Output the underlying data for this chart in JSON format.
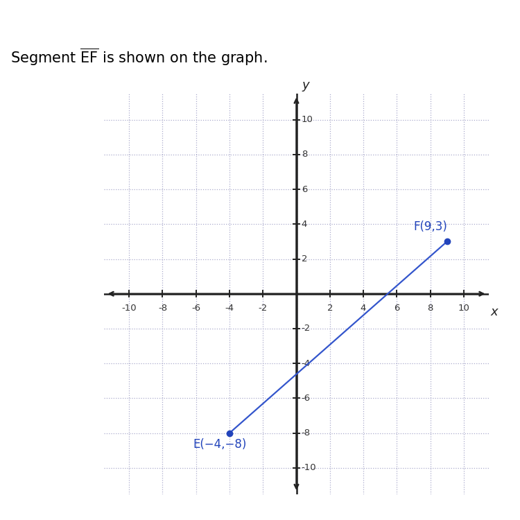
{
  "header_bg_color": "#555555",
  "header_text_color": "#000000",
  "title_text": "Segment $\\overline{\\mathrm{EF}}$ is shown on the graph.",
  "title_fontsize": 15,
  "point_E": [
    -4,
    -8
  ],
  "point_F": [
    9,
    3
  ],
  "point_color": "#2244bb",
  "line_color": "#3355cc",
  "label_E": "E(−4,−8)",
  "label_F": "F(9,3)",
  "label_color": "#2244bb",
  "label_fontsize": 12,
  "axis_label_x": "x",
  "axis_label_y": "y",
  "xlim": [
    -11.5,
    11.5
  ],
  "ylim": [
    -11.5,
    11.5
  ],
  "tick_step": 2,
  "grid_color": "#aaaacc",
  "tick_label_color": "#333333",
  "axis_color": "#222222",
  "bg_color": "#ffffff",
  "fig_width": 7.5,
  "fig_height": 7.5,
  "dpi": 100
}
